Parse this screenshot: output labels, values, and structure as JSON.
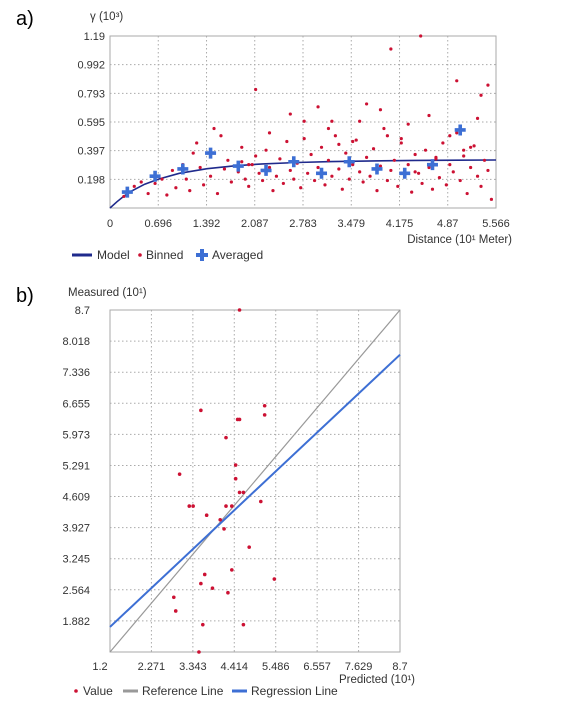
{
  "panel_a": {
    "label": "a)",
    "ylabel": "γ (10³)",
    "xlabel": "Distance (10¹ Meter)",
    "legend": [
      "Model",
      "Binned",
      "Averaged"
    ]
  },
  "panel_b": {
    "label": "b)",
    "ylabel": "Measured (10¹)",
    "xlabel": "Predicted (10¹)",
    "legend": [
      "Value",
      "Reference Line",
      "Regression Line"
    ]
  },
  "colors": {
    "model": "#1f2a8c",
    "binned": "#cc1133",
    "averaged": "#3d6fd4",
    "reference": "#999999",
    "regression": "#3d6fd4",
    "grid": "#aaaaaa"
  },
  "chart_data": [
    {
      "type": "scatter",
      "xlim": [
        0,
        5.566
      ],
      "ylim": [
        0,
        1.19
      ],
      "xticks": [
        "0",
        "0.696",
        "1.392",
        "2.087",
        "2.783",
        "3.479",
        "4.175",
        "4.87",
        "5.566"
      ],
      "yticks": [
        "0.198",
        "0.397",
        "0.595",
        "0.793",
        "0.992",
        "1.19"
      ],
      "grid": true,
      "legend_position": "bottom",
      "series": [
        {
          "name": "Model",
          "kind": "line",
          "x": [
            0,
            0.1,
            0.2,
            0.3,
            0.5,
            0.7,
            1.0,
            1.4,
            1.8,
            2.2,
            2.7,
            3.2,
            3.8,
            4.4,
            5.0,
            5.566
          ],
          "y": [
            0,
            0.043,
            0.082,
            0.115,
            0.165,
            0.2,
            0.24,
            0.272,
            0.292,
            0.305,
            0.315,
            0.321,
            0.326,
            0.329,
            0.331,
            0.332
          ]
        },
        {
          "name": "Binned",
          "kind": "points",
          "x": [
            0.2,
            0.25,
            0.35,
            0.45,
            0.55,
            0.6,
            0.65,
            0.75,
            0.82,
            0.9,
            0.95,
            1.05,
            1.1,
            1.15,
            1.25,
            1.3,
            1.35,
            1.45,
            1.5,
            1.55,
            1.6,
            1.65,
            1.7,
            1.75,
            1.85,
            1.9,
            1.95,
            2.0,
            2.05,
            2.1,
            2.15,
            2.2,
            2.25,
            2.3,
            2.35,
            2.4,
            2.45,
            2.5,
            2.55,
            2.6,
            2.65,
            2.7,
            2.75,
            2.8,
            2.85,
            2.9,
            2.95,
            3.0,
            3.05,
            3.1,
            3.15,
            3.2,
            3.25,
            3.3,
            3.35,
            3.4,
            3.45,
            3.5,
            3.55,
            3.6,
            3.65,
            3.7,
            3.75,
            3.8,
            3.85,
            3.9,
            3.95,
            4.0,
            4.05,
            4.1,
            4.15,
            4.2,
            4.25,
            4.3,
            4.35,
            4.4,
            4.45,
            4.5,
            4.55,
            4.6,
            4.65,
            4.7,
            4.75,
            4.8,
            4.85,
            4.9,
            4.95,
            5.0,
            5.05,
            5.1,
            5.15,
            5.2,
            5.25,
            5.3,
            5.35,
            5.4,
            5.45,
            5.5,
            2.1,
            3.15,
            3.9,
            4.48,
            4.05,
            5.0,
            5.35,
            5.45,
            5.3,
            2.6,
            3.2,
            4.3,
            4.6,
            1.5,
            3.7,
            4.9,
            3.0,
            2.3,
            3.6,
            4.2,
            1.2,
            2.8,
            5.1,
            4.0,
            3.3,
            2.0,
            4.7,
            5.2,
            1.9,
            3.5,
            4.4
          ],
          "y": [
            0.08,
            0.12,
            0.15,
            0.18,
            0.1,
            0.22,
            0.17,
            0.2,
            0.09,
            0.26,
            0.14,
            0.3,
            0.2,
            0.12,
            0.45,
            0.28,
            0.16,
            0.22,
            0.38,
            0.1,
            0.5,
            0.27,
            0.33,
            0.18,
            0.25,
            0.42,
            0.2,
            0.15,
            0.3,
            0.36,
            0.24,
            0.19,
            0.4,
            0.28,
            0.12,
            0.22,
            0.34,
            0.17,
            0.46,
            0.26,
            0.2,
            0.31,
            0.14,
            0.6,
            0.24,
            0.37,
            0.19,
            0.28,
            0.42,
            0.16,
            0.33,
            0.22,
            0.5,
            0.27,
            0.13,
            0.38,
            0.2,
            0.3,
            0.47,
            0.25,
            0.18,
            0.35,
            0.22,
            0.41,
            0.12,
            0.29,
            0.55,
            0.19,
            0.26,
            0.33,
            0.15,
            0.48,
            0.22,
            0.3,
            0.11,
            0.37,
            0.24,
            0.17,
            0.4,
            0.28,
            0.13,
            0.34,
            0.21,
            0.45,
            0.16,
            0.3,
            0.25,
            0.52,
            0.19,
            0.36,
            0.1,
            0.28,
            0.43,
            0.22,
            0.15,
            0.33,
            0.26,
            0.06,
            0.82,
            0.55,
            0.68,
            1.19,
            1.1,
            0.88,
            0.78,
            0.85,
            0.62,
            0.65,
            0.6,
            0.58,
            0.64,
            0.55,
            0.72,
            0.5,
            0.7,
            0.52,
            0.6,
            0.45,
            0.38,
            0.48,
            0.4,
            0.5,
            0.44,
            0.3,
            0.35,
            0.42,
            0.32,
            0.46,
            0.25
          ]
        },
        {
          "name": "Averaged",
          "kind": "points",
          "x": [
            0.25,
            0.65,
            1.05,
            1.45,
            1.85,
            2.25,
            2.65,
            3.05,
            3.45,
            3.85,
            4.25,
            4.65,
            5.05
          ],
          "y": [
            0.11,
            0.22,
            0.27,
            0.38,
            0.29,
            0.26,
            0.32,
            0.24,
            0.32,
            0.27,
            0.24,
            0.3,
            0.54
          ]
        }
      ]
    },
    {
      "type": "scatter",
      "xlim": [
        1.2,
        8.7
      ],
      "ylim": [
        1.2,
        8.7
      ],
      "xticks": [
        "1.2",
        "2.271",
        "3.343",
        "4.414",
        "5.486",
        "6.557",
        "7.629",
        "8.7"
      ],
      "yticks": [
        "1.882",
        "2.564",
        "3.245",
        "3.927",
        "4.609",
        "5.291",
        "5.973",
        "6.655",
        "7.336",
        "8.018",
        "8.7"
      ],
      "grid": true,
      "legend_position": "bottom",
      "series": [
        {
          "name": "Value",
          "kind": "points",
          "x": [
            4.55,
            3.55,
            4.5,
            4.55,
            5.2,
            5.2,
            4.2,
            3.0,
            4.45,
            4.45,
            4.55,
            4.65,
            3.25,
            3.35,
            4.35,
            3.7,
            4.2,
            4.15,
            4.05,
            5.1,
            4.8,
            3.65,
            4.35,
            3.85,
            4.25,
            3.55,
            5.45,
            2.85,
            2.9,
            3.6,
            4.65,
            3.5
          ],
          "y": [
            8.7,
            6.5,
            6.3,
            6.3,
            6.6,
            6.4,
            5.9,
            5.1,
            5.3,
            5.0,
            4.7,
            4.7,
            4.4,
            4.4,
            4.4,
            4.2,
            4.4,
            3.9,
            4.1,
            4.5,
            3.5,
            2.9,
            3.0,
            2.6,
            2.5,
            2.7,
            2.8,
            2.4,
            2.1,
            1.8,
            1.8,
            1.2
          ]
        },
        {
          "name": "Reference Line",
          "kind": "line",
          "x": [
            1.2,
            8.7
          ],
          "y": [
            1.2,
            8.7
          ]
        },
        {
          "name": "Regression Line",
          "kind": "line",
          "x": [
            1.2,
            8.7
          ],
          "y": [
            1.75,
            7.72
          ]
        }
      ]
    }
  ]
}
